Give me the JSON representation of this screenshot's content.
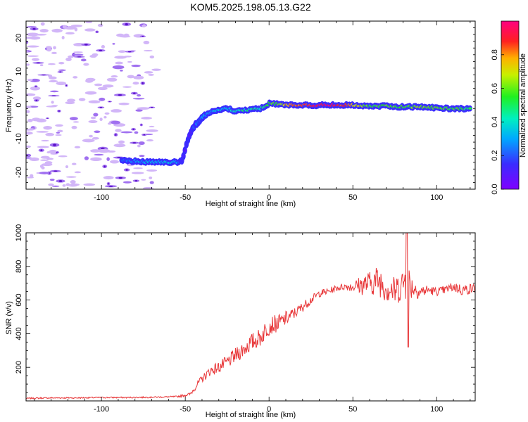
{
  "title": "KOM5.2025.198.05.13.G22",
  "colorbar": {
    "label": "Normalized spectral amplitude",
    "ticks": [
      "0.0",
      "0.2",
      "0.4",
      "0.6",
      "0.8"
    ],
    "tick_values": [
      0.0,
      0.2,
      0.4,
      0.6,
      0.8
    ],
    "range": [
      0,
      1
    ]
  },
  "chart_data": [
    {
      "type": "heatmap",
      "xlabel": "Height of straight line (km)",
      "ylabel": "Frequency (Hz)",
      "xlim": [
        -145,
        123
      ],
      "ylim": [
        -25,
        25
      ],
      "xticks": [
        "-100",
        "-50",
        "0",
        "50",
        "100"
      ],
      "xtick_values": [
        -100,
        -50,
        0,
        50,
        100
      ],
      "yticks": [
        "20",
        "10",
        "0",
        "-10",
        "-20"
      ],
      "ytick_values": [
        20,
        10,
        0,
        -10,
        -20
      ],
      "colormap": "rainbow (purple-blue-cyan-green-yellow-red-magenta)",
      "noise_region_x": [
        -145,
        -75
      ],
      "ridge": {
        "x": [
          -88,
          -75,
          -65,
          -55,
          -52,
          -50,
          -48,
          -46,
          -44,
          -42,
          -40,
          -38,
          -35,
          -30,
          -25,
          -20,
          -15,
          -10,
          -5,
          0,
          5,
          10,
          20,
          30,
          40,
          50,
          60,
          70,
          80,
          90,
          100,
          110,
          120
        ],
        "y": [
          -16.5,
          -16.8,
          -17,
          -17,
          -16.5,
          -13,
          -9.5,
          -7.5,
          -6,
          -5,
          -4,
          -3,
          -2,
          -1.5,
          -1,
          -1.8,
          -1.5,
          -1.2,
          -1,
          0.5,
          0.3,
          0,
          0,
          0,
          0,
          0,
          -0.2,
          -0.3,
          -0.5,
          -0.5,
          -0.8,
          -1,
          -1
        ],
        "amplitude": [
          0.2,
          0.3,
          0.35,
          0.3,
          0.15,
          0.12,
          0.12,
          0.15,
          0.2,
          0.25,
          0.25,
          0.3,
          0.3,
          0.35,
          0.35,
          0.4,
          0.45,
          0.45,
          0.45,
          0.55,
          0.6,
          0.75,
          0.85,
          0.95,
          0.95,
          0.75,
          0.55,
          0.6,
          0.55,
          0.6,
          0.6,
          0.55,
          0.5
        ]
      }
    },
    {
      "type": "line",
      "xlabel": "Height of straight line (km)",
      "ylabel": "SNR (v/v)",
      "xlim": [
        -145,
        123
      ],
      "ylim": [
        0,
        1000
      ],
      "xticks": [
        "-100",
        "-50",
        "0",
        "50",
        "100"
      ],
      "xtick_values": [
        -100,
        -50,
        0,
        50,
        100
      ],
      "yticks": [
        "1000",
        "800",
        "600",
        "400",
        "200"
      ],
      "ytick_values": [
        1000,
        800,
        600,
        400,
        200
      ],
      "color": "#e8383a",
      "series": [
        {
          "name": "",
          "x": [
            -145,
            -130,
            -115,
            -100,
            -85,
            -70,
            -55,
            -47,
            -44,
            -42,
            -40,
            -38,
            -35,
            -30,
            -25,
            -20,
            -15,
            -10,
            -5,
            0,
            5,
            10,
            15,
            20,
            25,
            30,
            35,
            40,
            45,
            50,
            55,
            60,
            65,
            70,
            75,
            80,
            82,
            85,
            90,
            95,
            100,
            105,
            110,
            115,
            123
          ],
          "y": [
            15,
            18,
            18,
            20,
            20,
            22,
            25,
            40,
            80,
            110,
            130,
            150,
            180,
            200,
            230,
            270,
            310,
            350,
            380,
            450,
            460,
            490,
            520,
            560,
            600,
            640,
            650,
            670,
            680,
            680,
            690,
            700,
            720,
            680,
            650,
            700,
            740,
            680,
            650,
            660,
            650,
            660,
            680,
            660,
            670
          ],
          "amplitude_spread": [
            8,
            8,
            8,
            8,
            8,
            8,
            10,
            20,
            30,
            40,
            45,
            50,
            60,
            70,
            80,
            90,
            100,
            110,
            110,
            120,
            100,
            90,
            70,
            60,
            50,
            45,
            40,
            40,
            40,
            60,
            120,
            150,
            180,
            200,
            180,
            200,
            300,
            150,
            80,
            60,
            50,
            50,
            60,
            70,
            60
          ]
        }
      ]
    }
  ]
}
